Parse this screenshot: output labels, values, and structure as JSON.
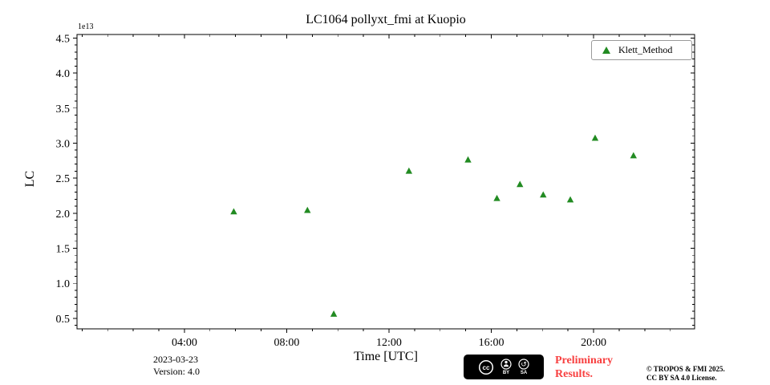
{
  "chart_data": {
    "type": "scatter",
    "title": "LC1064 pollyxt_fmi at Kuopio",
    "xlabel": "Time [UTC]",
    "ylabel": "LC",
    "y_offset_text": "1e13",
    "xlim_hours": [
      -0.2,
      23.95
    ],
    "ylim": [
      0.35,
      4.55
    ],
    "grid": false,
    "xticks": [
      {
        "hour": 4,
        "label": "04:00"
      },
      {
        "hour": 8,
        "label": "08:00"
      },
      {
        "hour": 12,
        "label": "12:00"
      },
      {
        "hour": 16,
        "label": "16:00"
      },
      {
        "hour": 20,
        "label": "20:00"
      }
    ],
    "yticks": [
      0.5,
      1.0,
      1.5,
      2.0,
      2.5,
      3.0,
      3.5,
      4.0,
      4.5
    ],
    "legend": {
      "label": "Klett_Method",
      "position": "upper right",
      "marker": "triangle",
      "marker_color": "#228B22"
    },
    "series": [
      {
        "name": "Klett_Method",
        "marker": "triangle",
        "color": "#228B22",
        "points": [
          {
            "time_utc": "05:56",
            "hour": 5.93,
            "lc_e13": 2.02
          },
          {
            "time_utc": "08:49",
            "hour": 8.81,
            "lc_e13": 2.04
          },
          {
            "time_utc": "09:50",
            "hour": 9.84,
            "lc_e13": 0.56
          },
          {
            "time_utc": "12:47",
            "hour": 12.78,
            "lc_e13": 2.6
          },
          {
            "time_utc": "15:05",
            "hour": 15.09,
            "lc_e13": 2.76
          },
          {
            "time_utc": "16:13",
            "hour": 16.22,
            "lc_e13": 2.21
          },
          {
            "time_utc": "17:07",
            "hour": 17.12,
            "lc_e13": 2.41
          },
          {
            "time_utc": "18:02",
            "hour": 18.03,
            "lc_e13": 2.26
          },
          {
            "time_utc": "19:05",
            "hour": 19.09,
            "lc_e13": 2.19
          },
          {
            "time_utc": "20:04",
            "hour": 20.06,
            "lc_e13": 3.07
          },
          {
            "time_utc": "21:34",
            "hour": 21.56,
            "lc_e13": 2.82
          }
        ]
      }
    ]
  },
  "footer": {
    "date": "2023-03-23",
    "version": "Version: 4.0",
    "preliminary_line1": "Preliminary",
    "preliminary_line2": "Results.",
    "preliminary_color": "#f84040",
    "copyright_line1": "© TROPOS & FMI 2025.",
    "copyright_line2": "CC BY SA 4.0 License.",
    "cc_badge": {
      "by_label": "BY",
      "sa_label": "SA"
    }
  }
}
